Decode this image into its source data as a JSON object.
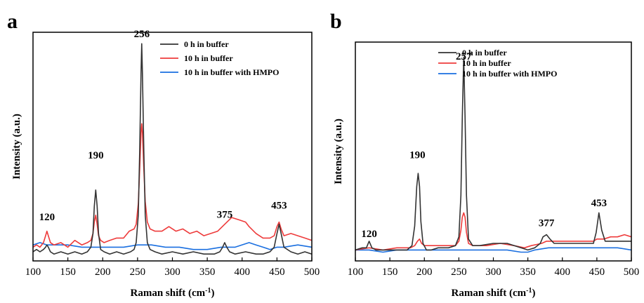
{
  "chart_data": [
    {
      "panel_label": "a",
      "type": "line",
      "xlabel": "Raman shift (cm",
      "xlabel_sup": "-1",
      "xlabel_end": ")",
      "ylabel": "Intensity (a.u.)",
      "xlim": [
        100,
        500
      ],
      "ylim": [
        0,
        100
      ],
      "xticks": [
        100,
        150,
        200,
        250,
        300,
        350,
        400,
        450,
        500
      ],
      "y_ticks_shown": false,
      "legend_position": "top-right",
      "annotations": [
        {
          "text": "120",
          "x": 120,
          "y": 16
        },
        {
          "text": "190",
          "x": 190,
          "y": 43
        },
        {
          "text": "256",
          "x": 256,
          "y": 96
        },
        {
          "text": "375",
          "x": 375,
          "y": 17
        },
        {
          "text": "453",
          "x": 453,
          "y": 21
        }
      ],
      "series": [
        {
          "name": "0 h in buffer",
          "color": "#333333",
          "x": [
            100,
            105,
            110,
            115,
            118,
            120,
            122,
            125,
            130,
            140,
            150,
            160,
            170,
            178,
            183,
            186,
            188,
            190,
            192,
            194,
            197,
            202,
            210,
            220,
            230,
            240,
            245,
            248,
            251,
            253,
            255,
            256,
            257,
            259,
            261,
            264,
            268,
            275,
            285,
            300,
            315,
            330,
            345,
            360,
            368,
            372,
            375,
            378,
            382,
            390,
            405,
            420,
            430,
            440,
            446,
            450,
            453,
            456,
            460,
            470,
            480,
            490,
            500
          ],
          "y": [
            4,
            5,
            4,
            5,
            6,
            7,
            6,
            4,
            3,
            4,
            3,
            4,
            3,
            4,
            6,
            12,
            24,
            31,
            24,
            12,
            5,
            4,
            3,
            4,
            3,
            4,
            5,
            8,
            20,
            48,
            82,
            95,
            82,
            48,
            20,
            8,
            5,
            4,
            3,
            4,
            3,
            4,
            3,
            3,
            4,
            6,
            8,
            6,
            4,
            3,
            4,
            3,
            3,
            4,
            6,
            12,
            16,
            12,
            6,
            4,
            3,
            4,
            3
          ]
        },
        {
          "name": "10 h in buffer",
          "color": "#ee3b3b",
          "x": [
            100,
            105,
            110,
            115,
            118,
            120,
            122,
            125,
            130,
            140,
            150,
            160,
            170,
            178,
            183,
            186,
            188,
            190,
            192,
            194,
            197,
            202,
            210,
            220,
            230,
            238,
            245,
            248,
            251,
            253,
            255,
            256,
            257,
            259,
            261,
            264,
            268,
            275,
            285,
            295,
            305,
            315,
            325,
            335,
            345,
            355,
            365,
            375,
            385,
            395,
            405,
            410,
            420,
            430,
            440,
            446,
            450,
            453,
            456,
            460,
            470,
            480,
            490,
            500
          ],
          "y": [
            6,
            7,
            6,
            8,
            11,
            13,
            11,
            8,
            7,
            8,
            6,
            9,
            7,
            8,
            9,
            12,
            17,
            20,
            16,
            11,
            9,
            8,
            9,
            10,
            10,
            13,
            14,
            16,
            25,
            40,
            56,
            60,
            56,
            40,
            26,
            17,
            14,
            13,
            13,
            15,
            13,
            14,
            12,
            13,
            11,
            12,
            13,
            16,
            19,
            18,
            17,
            15,
            12,
            10,
            10,
            11,
            15,
            17,
            14,
            11,
            12,
            11,
            10,
            9
          ]
        },
        {
          "name": "10 h in buffer with HMPO",
          "color": "#1a6fe0",
          "x": [
            100,
            110,
            120,
            130,
            150,
            170,
            190,
            210,
            230,
            250,
            270,
            290,
            310,
            330,
            350,
            370,
            390,
            410,
            420,
            430,
            440,
            450,
            460,
            480,
            500
          ],
          "y": [
            7,
            8,
            7,
            7,
            7,
            6,
            6,
            6,
            6,
            7,
            7,
            6,
            6,
            5,
            5,
            6,
            6,
            8,
            7,
            6,
            5,
            6,
            6,
            7,
            6
          ]
        }
      ]
    },
    {
      "panel_label": "b",
      "type": "line",
      "xlabel": "Raman shift (cm",
      "xlabel_sup": "-1",
      "xlabel_end": ")",
      "ylabel": "Intensity (a.u.)",
      "xlim": [
        100,
        500
      ],
      "ylim": [
        0,
        100
      ],
      "xticks": [
        100,
        150,
        200,
        250,
        300,
        350,
        400,
        450,
        500
      ],
      "y_ticks_shown": false,
      "legend_position": "top-right",
      "annotations": [
        {
          "text": "120",
          "x": 120,
          "y": 9
        },
        {
          "text": "190",
          "x": 190,
          "y": 45
        },
        {
          "text": "257",
          "x": 257,
          "y": 90
        },
        {
          "text": "377",
          "x": 377,
          "y": 14
        },
        {
          "text": "453",
          "x": 453,
          "y": 23
        }
      ],
      "series": [
        {
          "name": "0 h in buffer",
          "color": "#333333",
          "x": [
            100,
            110,
            116,
            120,
            124,
            130,
            140,
            160,
            175,
            182,
            186,
            189,
            191,
            193,
            195,
            198,
            203,
            210,
            220,
            235,
            245,
            250,
            253,
            255,
            257,
            259,
            261,
            264,
            270,
            280,
            300,
            320,
            340,
            350,
            360,
            368,
            372,
            377,
            382,
            388,
            400,
            420,
            435,
            445,
            449,
            453,
            457,
            462,
            470,
            480,
            490,
            500
          ],
          "y": [
            5,
            6,
            6,
            9,
            6,
            5,
            5,
            5,
            5,
            7,
            16,
            34,
            40,
            34,
            18,
            8,
            5,
            5,
            6,
            6,
            7,
            11,
            30,
            66,
            93,
            66,
            30,
            10,
            7,
            7,
            8,
            8,
            6,
            5,
            6,
            8,
            11,
            12,
            10,
            8,
            8,
            8,
            8,
            8,
            13,
            22,
            14,
            9,
            9,
            9,
            9,
            9
          ]
        },
        {
          "name": "10 h in buffer",
          "color": "#ee3b3b",
          "x": [
            100,
            120,
            140,
            160,
            180,
            186,
            190,
            193,
            196,
            200,
            210,
            230,
            245,
            250,
            253,
            255,
            257,
            259,
            261,
            264,
            270,
            290,
            310,
            330,
            345,
            355,
            370,
            377,
            384,
            395,
            410,
            430,
            445,
            450,
            455,
            460,
            470,
            480,
            490,
            500
          ],
          "y": [
            5,
            6,
            5,
            6,
            6,
            7,
            9,
            10,
            8,
            7,
            7,
            7,
            7,
            9,
            14,
            20,
            22,
            20,
            13,
            8,
            7,
            7,
            8,
            7,
            6,
            7,
            8,
            9,
            9,
            9,
            9,
            9,
            9,
            10,
            10,
            10,
            11,
            11,
            12,
            11
          ]
        },
        {
          "name": "10 h in buffer with HMPO",
          "color": "#1a6fe0",
          "x": [
            100,
            120,
            140,
            160,
            180,
            200,
            220,
            240,
            260,
            280,
            300,
            320,
            340,
            350,
            360,
            380,
            400,
            420,
            440,
            460,
            480,
            500
          ],
          "y": [
            5,
            5,
            4,
            5,
            5,
            5,
            5,
            5,
            5,
            5,
            5,
            5,
            4,
            4,
            5,
            6,
            6,
            6,
            6,
            6,
            6,
            5
          ]
        }
      ]
    }
  ]
}
